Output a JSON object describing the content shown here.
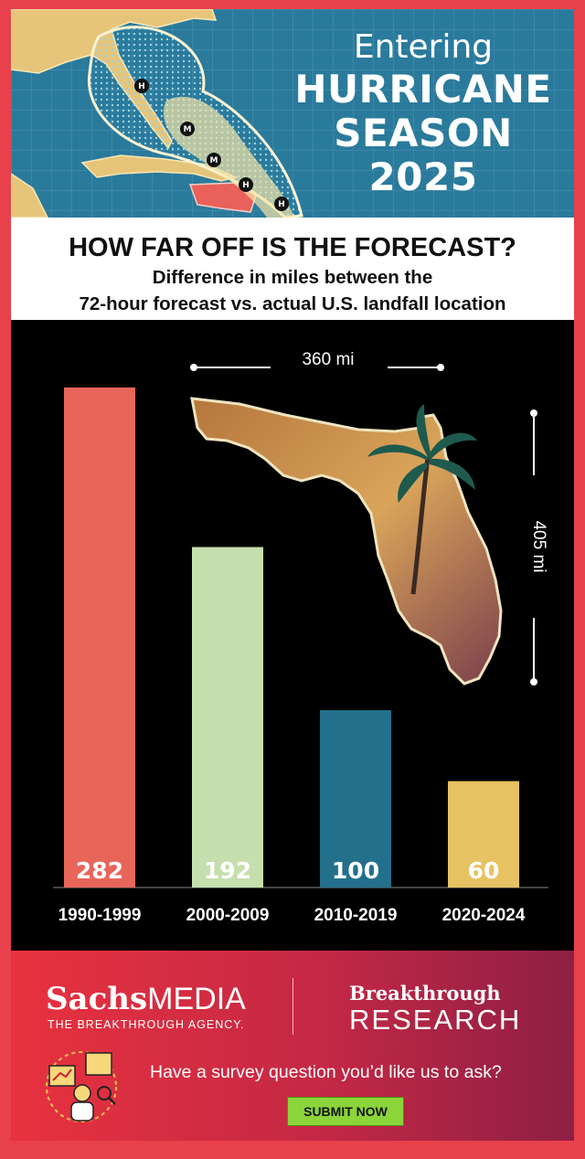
{
  "header": {
    "line1": "Entering",
    "line2": "HURRICANE",
    "line3": "SEASON",
    "line4": "2025",
    "map_markers": [
      "H",
      "M",
      "M",
      "H",
      "H"
    ]
  },
  "chart_data": {
    "type": "bar",
    "title": "HOW FAR OFF IS THE FORECAST?",
    "subtitle_line1": "Difference in miles between the",
    "subtitle_line2": "72-hour forecast vs. actual U.S. landfall location",
    "categories": [
      "1990-1999",
      "2000-2009",
      "2010-2019",
      "2020-2024"
    ],
    "values": [
      282,
      192,
      100,
      60
    ],
    "colors": [
      "#e8655a",
      "#c6dfae",
      "#23708c",
      "#e6c262"
    ],
    "ylim": [
      0,
      300
    ],
    "grid": false,
    "scale_labels": {
      "width": "360 mi",
      "height": "405 mi"
    }
  },
  "footer": {
    "brand_sachs": "Sachs",
    "brand_media": "MEDIA",
    "tagline": "THE BREAKTHROUGH AGENCY.",
    "breakthrough": "Breakthrough",
    "research": "RESEARCH",
    "cta": "Have a survey question you’d like us to ask?",
    "button": "SUBMIT NOW"
  }
}
